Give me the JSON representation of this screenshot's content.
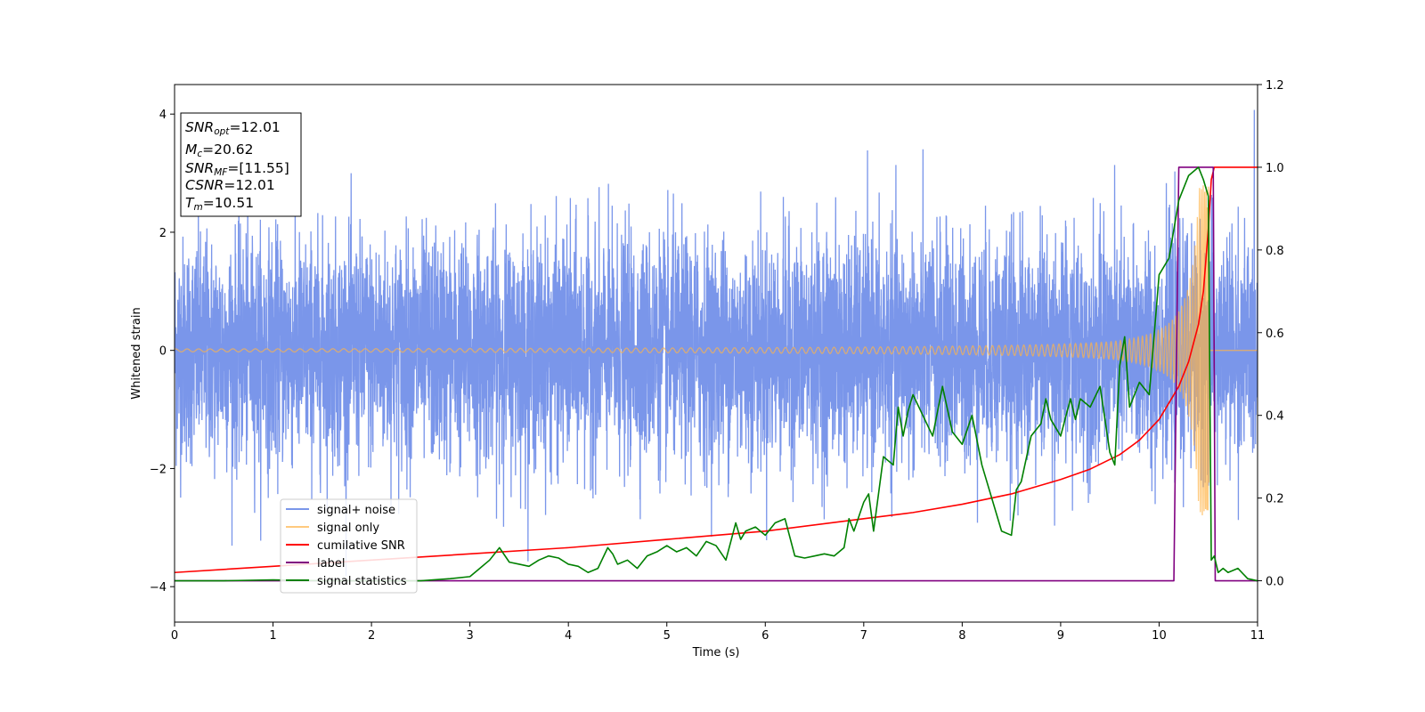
{
  "chart_data": {
    "type": "line",
    "xlabel": "Time (s)",
    "ylabel": "Whitened strain",
    "xlim": [
      0,
      11
    ],
    "ylim_left": [
      -4.6,
      4.5
    ],
    "ylim_right": [
      -0.1,
      1.2
    ],
    "x_ticks": [
      0,
      1,
      2,
      3,
      4,
      5,
      6,
      7,
      8,
      9,
      10,
      11
    ],
    "y_ticks_left": [
      -4,
      -2,
      0,
      2,
      4
    ],
    "y_ticks_right": [
      0.0,
      0.2,
      0.4,
      0.6,
      0.8,
      1.0,
      1.2
    ],
    "grid": false,
    "legend_position": "lower-left",
    "info_box": {
      "snr_opt": {
        "name": "SNR",
        "sub": "opt",
        "value": "=12.01"
      },
      "mc": {
        "name": "M",
        "sub": "c",
        "value": "=20.62"
      },
      "snr_mf": {
        "name": "SNR",
        "sub": "MF",
        "value": "=[11.55]"
      },
      "csnr": {
        "name": "CSNR",
        "sub": "",
        "value": "=12.01"
      },
      "tm": {
        "name": "T",
        "sub": "m",
        "value": "=10.51"
      }
    },
    "series": [
      {
        "name": "signal+ noise",
        "axis": "left",
        "color": "#4169e1",
        "kind": "noise",
        "description_stats": {
          "std": 1.0,
          "peak_max": 4.1,
          "peak_min": -4.0
        }
      },
      {
        "name": "signal only",
        "axis": "left",
        "color": "#ffb347",
        "kind": "chirp",
        "merger_time": 10.51,
        "peak_amplitude": 2.8
      },
      {
        "name": "cumilative SNR",
        "axis": "right",
        "color": "#ff0000",
        "x": [
          0,
          1,
          2,
          3,
          4,
          5,
          6,
          7,
          7.5,
          8,
          8.5,
          9,
          9.3,
          9.6,
          9.8,
          10.0,
          10.2,
          10.3,
          10.4,
          10.45,
          10.5,
          10.53,
          10.56,
          11
        ],
        "y": [
          0.02,
          0.035,
          0.05,
          0.065,
          0.08,
          0.1,
          0.12,
          0.15,
          0.165,
          0.185,
          0.21,
          0.245,
          0.27,
          0.305,
          0.34,
          0.39,
          0.47,
          0.53,
          0.62,
          0.7,
          0.85,
          0.97,
          1.0,
          1.0
        ]
      },
      {
        "name": "label",
        "axis": "right",
        "color": "#800080",
        "x": [
          0,
          10.15,
          10.2,
          10.55,
          10.57,
          11
        ],
        "y": [
          0,
          0,
          1,
          1,
          0,
          0
        ]
      },
      {
        "name": "signal statistics",
        "axis": "right",
        "color": "#008000",
        "x": [
          0,
          0.5,
          1.0,
          1.5,
          2.0,
          2.5,
          2.8,
          3.0,
          3.1,
          3.2,
          3.3,
          3.4,
          3.5,
          3.6,
          3.7,
          3.8,
          3.9,
          4.0,
          4.1,
          4.2,
          4.3,
          4.4,
          4.45,
          4.5,
          4.6,
          4.7,
          4.8,
          4.9,
          5.0,
          5.1,
          5.2,
          5.3,
          5.4,
          5.5,
          5.6,
          5.7,
          5.75,
          5.8,
          5.9,
          6.0,
          6.1,
          6.2,
          6.3,
          6.4,
          6.5,
          6.6,
          6.7,
          6.8,
          6.85,
          6.9,
          7.0,
          7.05,
          7.1,
          7.2,
          7.3,
          7.35,
          7.4,
          7.45,
          7.5,
          7.6,
          7.7,
          7.8,
          7.9,
          8.0,
          8.1,
          8.2,
          8.3,
          8.4,
          8.5,
          8.55,
          8.6,
          8.7,
          8.8,
          8.85,
          8.9,
          9.0,
          9.1,
          9.15,
          9.2,
          9.3,
          9.4,
          9.5,
          9.55,
          9.6,
          9.65,
          9.7,
          9.8,
          9.9,
          10.0,
          10.1,
          10.2,
          10.3,
          10.4,
          10.45,
          10.5,
          10.53,
          10.56,
          10.6,
          10.65,
          10.7,
          10.8,
          10.9,
          11.0
        ],
        "y": [
          0.0,
          0.0,
          0.002,
          0.0,
          0.0,
          0.0,
          0.005,
          0.01,
          0.03,
          0.05,
          0.08,
          0.045,
          0.04,
          0.035,
          0.05,
          0.06,
          0.055,
          0.04,
          0.035,
          0.02,
          0.03,
          0.08,
          0.065,
          0.04,
          0.05,
          0.03,
          0.06,
          0.07,
          0.085,
          0.07,
          0.08,
          0.06,
          0.095,
          0.085,
          0.05,
          0.14,
          0.1,
          0.12,
          0.13,
          0.11,
          0.14,
          0.15,
          0.06,
          0.055,
          0.06,
          0.065,
          0.06,
          0.08,
          0.15,
          0.12,
          0.19,
          0.21,
          0.12,
          0.3,
          0.28,
          0.42,
          0.35,
          0.41,
          0.45,
          0.4,
          0.35,
          0.47,
          0.36,
          0.33,
          0.4,
          0.28,
          0.2,
          0.12,
          0.11,
          0.22,
          0.24,
          0.35,
          0.38,
          0.44,
          0.39,
          0.35,
          0.44,
          0.39,
          0.44,
          0.42,
          0.47,
          0.31,
          0.28,
          0.52,
          0.59,
          0.42,
          0.48,
          0.45,
          0.74,
          0.78,
          0.92,
          0.98,
          1.0,
          0.97,
          0.93,
          0.05,
          0.06,
          0.02,
          0.03,
          0.02,
          0.03,
          0.005,
          0.0
        ]
      }
    ]
  }
}
